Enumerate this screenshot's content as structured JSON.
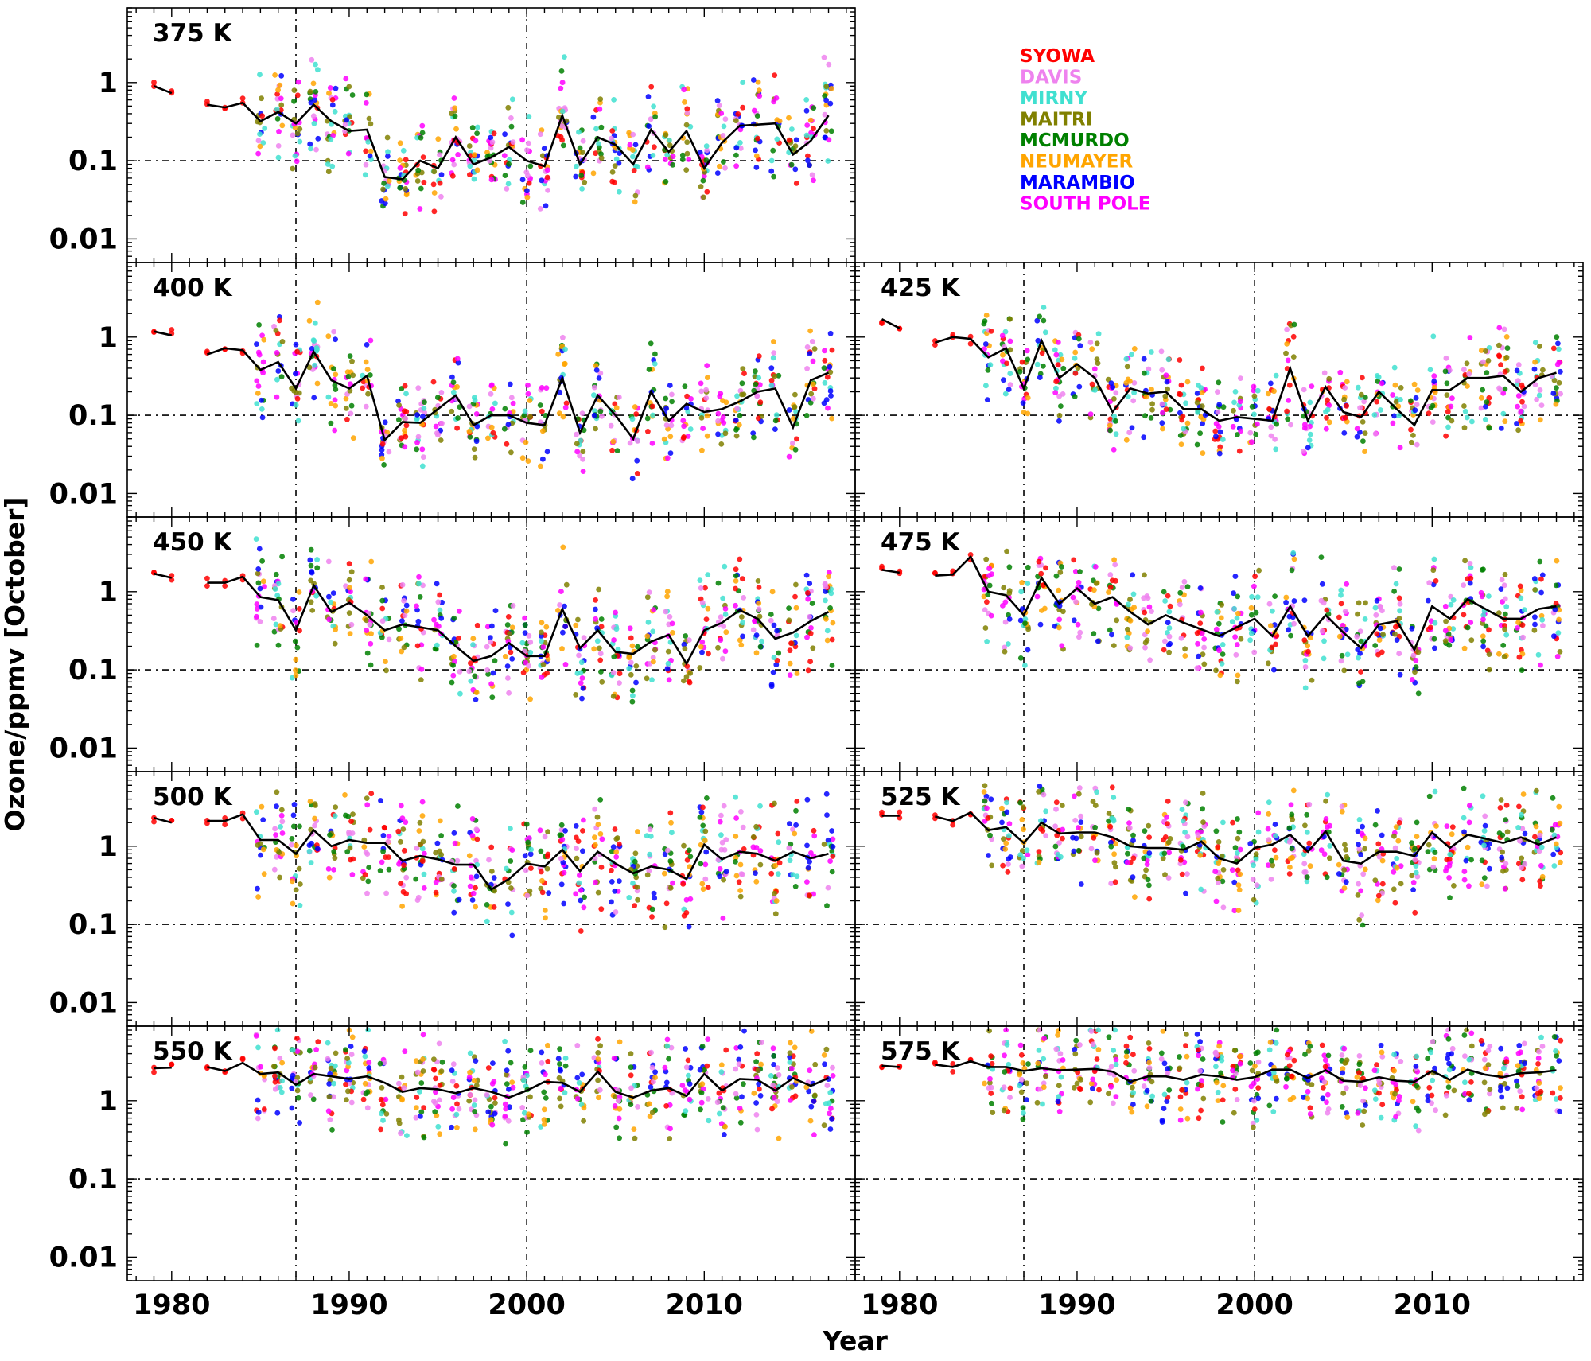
{
  "chart_data": {
    "type": "scatter",
    "xlabel": "Year",
    "ylabel": "Ozone/ppmv [October]",
    "xlim": [
      1977.5,
      2018.5
    ],
    "ylim": [
      0.005,
      9
    ],
    "yscale": "log",
    "x_ticks": [
      1980,
      1990,
      2000,
      2010
    ],
    "y_ticks": [
      0.01,
      0.1,
      1
    ],
    "y_tick_labels": [
      "0.01",
      "0.1",
      "1"
    ],
    "reference_lines": {
      "x": [
        1987,
        2000
      ],
      "y": [
        0.1
      ],
      "style": "dash-dot"
    },
    "legend": {
      "placement": "top-right (empty panel area)",
      "entries": [
        {
          "name": "SYOWA",
          "color": "#ff0000"
        },
        {
          "name": "DAVIS",
          "color": "#ee82ee"
        },
        {
          "name": "MIRNY",
          "color": "#40e0d0"
        },
        {
          "name": "MAITRI",
          "color": "#808000"
        },
        {
          "name": "MCMURDO",
          "color": "#008000"
        },
        {
          "name": "NEUMAYER",
          "color": "#ffa500"
        },
        {
          "name": "MARAMBIO",
          "color": "#0000ff"
        },
        {
          "name": "SOUTH POLE",
          "color": "#ff00ff"
        }
      ]
    },
    "years": [
      1979,
      1980,
      1982,
      1983,
      1984,
      1985,
      1986,
      1987,
      1988,
      1989,
      1990,
      1991,
      1992,
      1993,
      1994,
      1995,
      1996,
      1997,
      1998,
      1999,
      2000,
      2001,
      2002,
      2003,
      2004,
      2005,
      2006,
      2007,
      2008,
      2009,
      2010,
      2011,
      2012,
      2013,
      2014,
      2015,
      2016,
      2017
    ],
    "panels": [
      {
        "label": "375 K",
        "median": [
          0.9,
          0.73,
          0.52,
          0.48,
          0.55,
          0.32,
          0.42,
          0.3,
          0.52,
          0.32,
          0.24,
          0.25,
          0.062,
          0.058,
          0.1,
          0.08,
          0.2,
          0.09,
          0.11,
          0.15,
          0.1,
          0.085,
          0.38,
          0.09,
          0.2,
          0.16,
          0.09,
          0.25,
          0.13,
          0.24,
          0.08,
          0.17,
          0.28,
          0.29,
          0.3,
          0.12,
          0.18,
          0.38
        ]
      },
      {
        "label": "400 K",
        "median": [
          1.18,
          1.05,
          0.6,
          0.72,
          0.68,
          0.38,
          0.48,
          0.22,
          0.65,
          0.28,
          0.22,
          0.32,
          0.048,
          0.082,
          0.08,
          0.12,
          0.18,
          0.075,
          0.1,
          0.1,
          0.08,
          0.075,
          0.3,
          0.06,
          0.18,
          0.1,
          0.05,
          0.2,
          0.085,
          0.14,
          0.11,
          0.12,
          0.15,
          0.2,
          0.22,
          0.07,
          0.28,
          0.35
        ]
      },
      {
        "label": "425 K",
        "median": [
          1.7,
          1.3,
          0.85,
          1.0,
          0.95,
          0.55,
          0.72,
          0.22,
          0.9,
          0.3,
          0.45,
          0.3,
          0.11,
          0.22,
          0.19,
          0.2,
          0.12,
          0.12,
          0.085,
          0.095,
          0.09,
          0.085,
          0.4,
          0.085,
          0.23,
          0.11,
          0.095,
          0.2,
          0.12,
          0.075,
          0.21,
          0.21,
          0.3,
          0.3,
          0.32,
          0.2,
          0.3,
          0.35
        ]
      },
      {
        "label": "450 K",
        "median": [
          1.7,
          1.5,
          1.3,
          1.3,
          1.55,
          0.85,
          0.78,
          0.32,
          1.2,
          0.55,
          0.72,
          0.5,
          0.32,
          0.38,
          0.35,
          0.32,
          0.2,
          0.13,
          0.15,
          0.22,
          0.15,
          0.15,
          0.6,
          0.19,
          0.32,
          0.17,
          0.16,
          0.23,
          0.28,
          0.12,
          0.32,
          0.4,
          0.58,
          0.45,
          0.25,
          0.3,
          0.42,
          0.55
        ]
      },
      {
        "label": "475 K",
        "median": [
          1.9,
          1.75,
          1.6,
          1.65,
          2.8,
          1.0,
          0.9,
          0.5,
          1.5,
          0.7,
          1.1,
          0.7,
          0.85,
          0.55,
          0.38,
          0.5,
          0.4,
          0.33,
          0.27,
          0.35,
          0.45,
          0.27,
          0.65,
          0.27,
          0.5,
          0.3,
          0.19,
          0.38,
          0.42,
          0.18,
          0.65,
          0.45,
          0.8,
          0.6,
          0.45,
          0.45,
          0.6,
          0.65
        ]
      },
      {
        "label": "500 K",
        "median": [
          2.3,
          2.0,
          2.1,
          2.1,
          2.55,
          1.2,
          1.2,
          0.8,
          1.6,
          1.0,
          1.2,
          1.1,
          1.1,
          0.65,
          0.75,
          0.68,
          0.58,
          0.58,
          0.28,
          0.38,
          0.6,
          0.55,
          0.9,
          0.48,
          0.85,
          0.6,
          0.45,
          0.55,
          0.5,
          0.38,
          1.05,
          0.68,
          0.85,
          0.8,
          0.65,
          0.85,
          0.7,
          0.8
        ]
      },
      {
        "label": "525 K",
        "median": [
          2.45,
          2.45,
          2.4,
          2.1,
          2.7,
          1.6,
          1.75,
          1.1,
          2.0,
          1.45,
          1.5,
          1.5,
          1.3,
          1.0,
          0.95,
          0.95,
          0.9,
          1.15,
          0.7,
          0.6,
          0.95,
          1.05,
          1.4,
          0.85,
          1.55,
          0.65,
          0.6,
          0.85,
          0.85,
          0.75,
          1.5,
          0.95,
          1.4,
          1.25,
          1.1,
          1.3,
          1.05,
          1.3
        ]
      },
      {
        "label": "550 K",
        "median": [
          2.6,
          2.65,
          2.7,
          2.4,
          3.05,
          2.2,
          2.3,
          1.6,
          2.2,
          2.05,
          1.9,
          2.05,
          1.7,
          1.3,
          1.45,
          1.4,
          1.25,
          1.45,
          1.3,
          1.1,
          1.35,
          1.75,
          1.7,
          1.3,
          2.35,
          1.3,
          1.1,
          1.35,
          1.45,
          1.15,
          2.2,
          1.35,
          1.9,
          1.85,
          1.35,
          1.95,
          1.55,
          1.95
        ]
      },
      {
        "label": "575 K",
        "median": [
          2.8,
          2.7,
          2.9,
          2.7,
          3.2,
          2.7,
          2.7,
          2.4,
          2.6,
          2.45,
          2.5,
          2.55,
          2.35,
          1.75,
          2.05,
          2.05,
          1.85,
          2.15,
          2.05,
          1.85,
          2.0,
          2.5,
          2.5,
          1.95,
          2.45,
          1.8,
          1.75,
          2.0,
          1.8,
          1.75,
          2.4,
          1.85,
          2.5,
          2.15,
          2.0,
          2.25,
          2.3,
          2.45
        ]
      }
    ]
  }
}
